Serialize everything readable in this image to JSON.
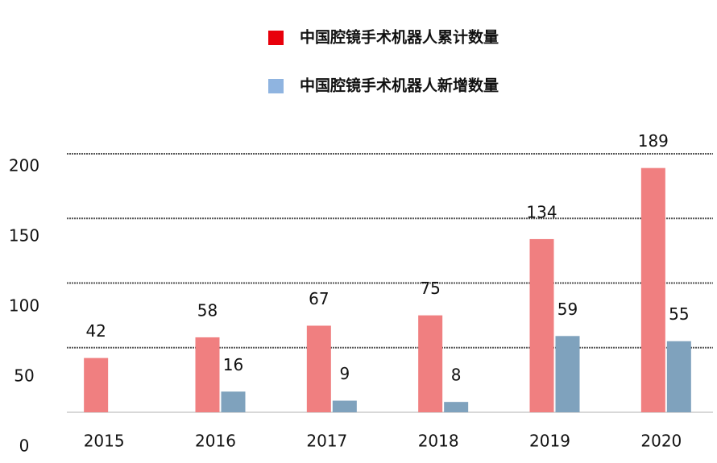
{
  "chart_data": {
    "type": "bar",
    "categories": [
      "2015",
      "2016",
      "2017",
      "2018",
      "2019",
      "2020"
    ],
    "series": [
      {
        "name": "中国腔镜手术机器人累计数量",
        "color": "#f07f80",
        "legend_color": "#e8000b",
        "values": [
          42,
          58,
          67,
          75,
          134,
          189
        ]
      },
      {
        "name": "中国腔镜手术机器人新增数量",
        "color": "#7fa2bd",
        "legend_color": "#8fb4e0",
        "values": [
          null,
          16,
          9,
          8,
          59,
          55
        ]
      }
    ],
    "ylim": [
      0,
      200
    ],
    "yticks": [
      0,
      50,
      100,
      150,
      200
    ],
    "grid": true
  }
}
